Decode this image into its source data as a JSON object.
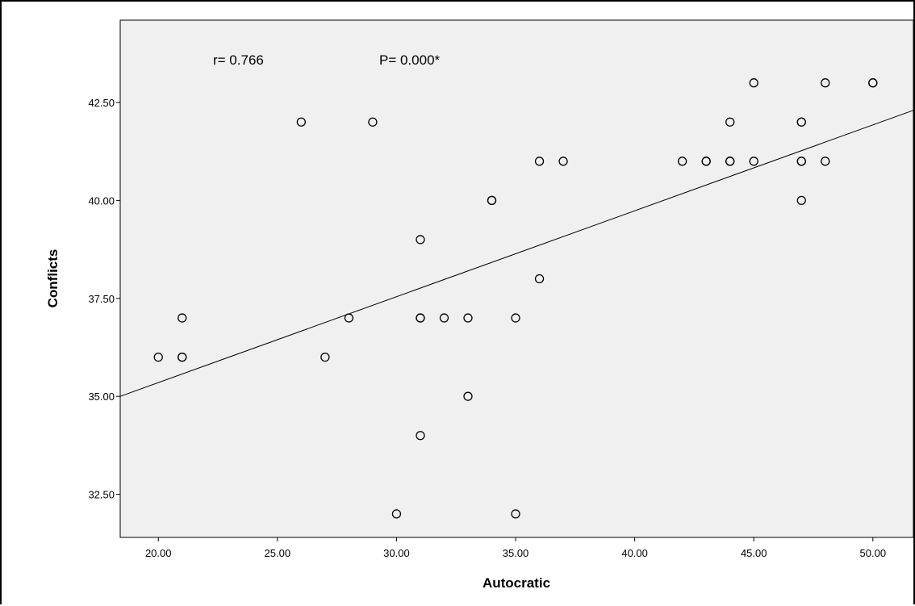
{
  "chart_data": {
    "type": "scatter",
    "xlabel": "Autocratic",
    "ylabel": "Conflicts",
    "xlim": [
      18.4,
      51.7
    ],
    "ylim": [
      31.4,
      44.6
    ],
    "xticks": [
      {
        "value": 20,
        "label": "20.00"
      },
      {
        "value": 25,
        "label": "25.00"
      },
      {
        "value": 30,
        "label": "30.00"
      },
      {
        "value": 35,
        "label": "35.00"
      },
      {
        "value": 40,
        "label": "40.00"
      },
      {
        "value": 45,
        "label": "45.00"
      },
      {
        "value": 50,
        "label": "50.00"
      }
    ],
    "yticks": [
      {
        "value": 32.5,
        "label": "32.50"
      },
      {
        "value": 35,
        "label": "35.00"
      },
      {
        "value": 37.5,
        "label": "37.50"
      },
      {
        "value": 40,
        "label": "40.00"
      },
      {
        "value": 42.5,
        "label": "42.50"
      }
    ],
    "grid": false,
    "annotations": [
      "r= 0.766",
      "P= 0.000*"
    ],
    "fit_line": {
      "x": [
        18.4,
        51.7
      ],
      "y": [
        35.0,
        42.3
      ]
    },
    "points": [
      {
        "x": 20,
        "y": 36
      },
      {
        "x": 21,
        "y": 36
      },
      {
        "x": 21,
        "y": 36
      },
      {
        "x": 21,
        "y": 37
      },
      {
        "x": 26,
        "y": 42
      },
      {
        "x": 27,
        "y": 36
      },
      {
        "x": 28,
        "y": 37
      },
      {
        "x": 29,
        "y": 42
      },
      {
        "x": 30,
        "y": 32
      },
      {
        "x": 31,
        "y": 34
      },
      {
        "x": 31,
        "y": 37
      },
      {
        "x": 31,
        "y": 37
      },
      {
        "x": 31,
        "y": 39
      },
      {
        "x": 32,
        "y": 37
      },
      {
        "x": 33,
        "y": 35
      },
      {
        "x": 33,
        "y": 37
      },
      {
        "x": 34,
        "y": 40
      },
      {
        "x": 34,
        "y": 40
      },
      {
        "x": 35,
        "y": 32
      },
      {
        "x": 35,
        "y": 37
      },
      {
        "x": 36,
        "y": 38
      },
      {
        "x": 36,
        "y": 41
      },
      {
        "x": 37,
        "y": 41
      },
      {
        "x": 42,
        "y": 41
      },
      {
        "x": 43,
        "y": 41
      },
      {
        "x": 43,
        "y": 41
      },
      {
        "x": 44,
        "y": 41
      },
      {
        "x": 44,
        "y": 41
      },
      {
        "x": 44,
        "y": 42
      },
      {
        "x": 45,
        "y": 41
      },
      {
        "x": 45,
        "y": 43
      },
      {
        "x": 47,
        "y": 40
      },
      {
        "x": 47,
        "y": 41
      },
      {
        "x": 47,
        "y": 41
      },
      {
        "x": 47,
        "y": 42
      },
      {
        "x": 47,
        "y": 42
      },
      {
        "x": 48,
        "y": 41
      },
      {
        "x": 48,
        "y": 43
      },
      {
        "x": 50,
        "y": 43
      },
      {
        "x": 50,
        "y": 43
      }
    ]
  }
}
